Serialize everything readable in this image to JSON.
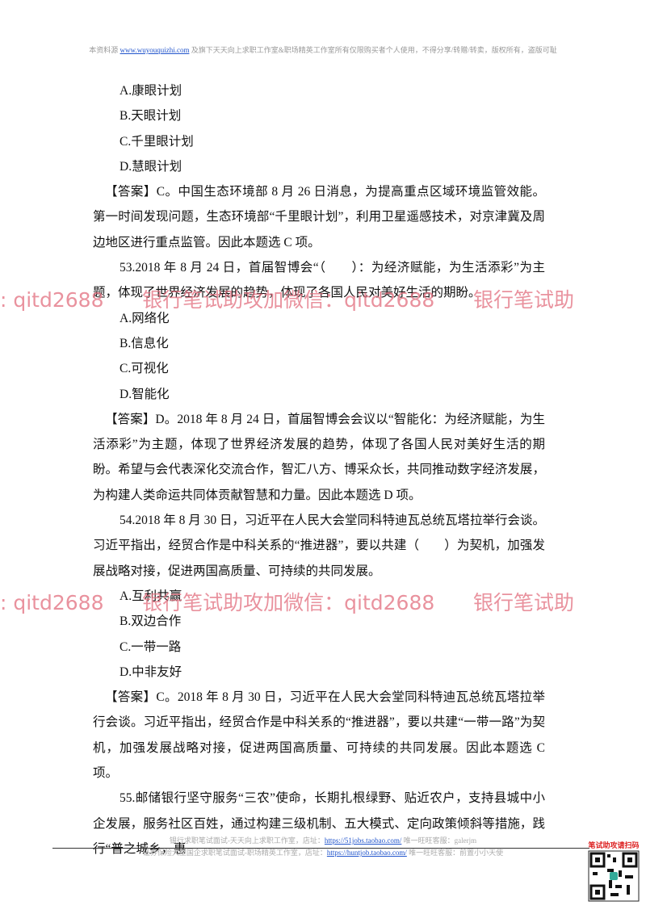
{
  "header": {
    "prefix": "本资料源",
    "link": "www.wuyouquizhi.com",
    "suffix": "及旗下天天向上求职工作室&职场精英工作室所有仅限购买者个人使用，不得分享/转赠/转卖，版权所有，盗版可耻"
  },
  "items": [
    {
      "options": [
        "A.康眼计划",
        "B.天眼计划",
        "C.千里眼计划",
        "D.慧眼计划"
      ],
      "answer": "【答案】C。中国生态环境部 8 月 26 日消息，为提高重点区域环境监管效能。第一时间发现问题，生态环境部“千里眼计划”，利用卫星遥感技术，对京津冀及周边地区进行重点监管。因此本题选 C 项。"
    },
    {
      "question": "53.2018 年 8 月 24 日，首届智博会“（　　）：为经济赋能，为生活添彩”为主题，体现了世界经济发展的趋势，体现了各国人民对美好生活的期盼。",
      "options": [
        "A.网络化",
        "B.信息化",
        "C.可视化",
        "D.智能化"
      ],
      "answer": "【答案】D。2018 年 8 月 24 日，首届智博会会议以“智能化：为经济赋能，为生活添彩”为主题，体现了世界经济发展的趋势，体现了各国人民对美好生活的期盼。希望与会代表深化交流合作，智汇八方、博采众长，共同推动数字经济发展，为构建人类命运共同体贡献智慧和力量。因此本题选 D 项。"
    },
    {
      "question": "54.2018 年 8 月 30 日，习近平在人民大会堂同科特迪瓦总统瓦塔拉举行会谈。习近平指出，经贸合作是中科关系的“推进器”，要以共建（　　）为契机，加强发展战略对接，促进两国高质量、可持续的共同发展。",
      "options": [
        "A.互利共赢",
        "B.双边合作",
        "C.一带一路",
        "D.中非友好"
      ],
      "answer": "【答案】C。2018 年 8 月 30 日，习近平在人民大会堂同科特迪瓦总统瓦塔拉举行会谈。习近平指出，经贸合作是中科关系的“推进器”，要以共建“一带一路”为契机，加强发展战略对接，促进两国高质量、可持续的共同发展。因此本题选 C 项。"
    },
    {
      "question": "55.邮储银行坚守服务“三农”使命，长期扎根绿野、贴近农户，支持县城中小企发展，服务社区百姓，通过构建三级机制、五大模式、定向政策倾斜等措施，践行“普之城乡，惠"
    }
  ],
  "watermarks": [
    ": qitd2688      银行笔试助攻加微信：qitd2688      银行笔试助",
    ": qitd2688      银行笔试助攻加微信：qitd2688      银行笔试助"
  ],
  "footer": [
    {
      "text": "银行求职笔试面试-天天向上求职工作室，店址：",
      "link": "https://51jobs.taobao.com/",
      "contact": "唯一旺旺客服：galerjm"
    },
    {
      "text": "证券保险大型国企求职笔试面试-职场精英工作室，店址：",
      "link": "https://huntjob.taobao.com/",
      "contact": "唯一旺旺客服：前置小小天使"
    }
  ],
  "qr_label": "笔试助攻请扫码"
}
